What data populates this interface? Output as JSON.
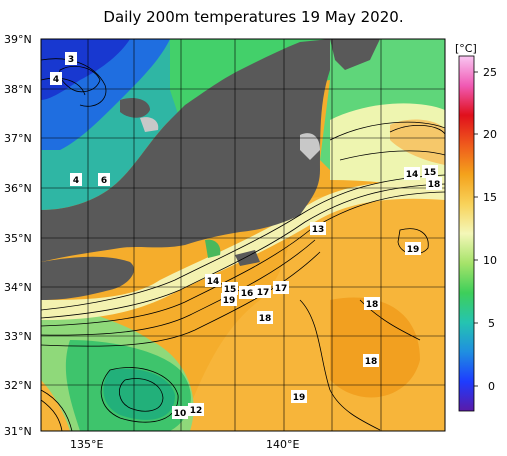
{
  "title": "Daily 200m temperatures 19 May 2020.",
  "lat_labels": [
    "39°N",
    "38°N",
    "37°N",
    "36°N",
    "35°N",
    "34°N",
    "33°N",
    "32°N",
    "31°N"
  ],
  "lon_labels": [
    "135°E",
    "140°E"
  ],
  "colorbar": {
    "unit": "[°C]",
    "ticks": [
      "25",
      "20",
      "15",
      "10",
      "5",
      "0"
    ],
    "stops": [
      "#5a1aa8",
      "#1e3cff",
      "#1f8fe0",
      "#25c4b0",
      "#3ecf5a",
      "#a6e36a",
      "#f4f7b8",
      "#f8d25a",
      "#f4a21c",
      "#ef5a1c",
      "#e0101c",
      "#f05ab4",
      "#f9c6f2"
    ]
  },
  "contour_labels": [
    "3",
    "4",
    "4",
    "6",
    "14",
    "15",
    "18",
    "13",
    "19",
    "14",
    "15",
    "16",
    "17",
    "17",
    "19",
    "18",
    "18",
    "18",
    "19",
    "10",
    "12"
  ],
  "colors": {
    "land": "#595959",
    "coast_gray": "#c8c8c8",
    "warm": "#f4aa2a",
    "cool": "#3ecf5a",
    "cold": "#1e4ed8"
  }
}
